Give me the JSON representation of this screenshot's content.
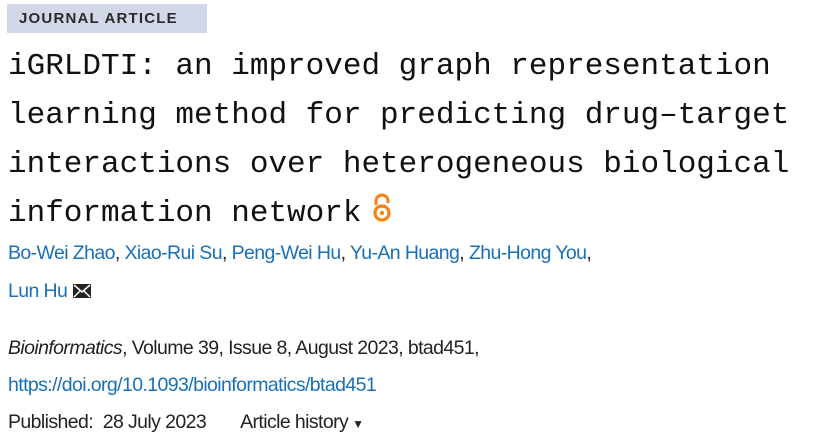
{
  "badge": "JOURNAL ARTICLE",
  "title": "iGRLDTI: an improved graph representation learning method for predicting drug–target interactions over heterogeneous biological information network",
  "authors": [
    "Bo-Wei Zhao",
    "Xiao-Rui Su",
    "Peng-Wei Hu",
    "Yu-An Huang",
    "Zhu-Hong You",
    "Lun Hu"
  ],
  "sep": ", ",
  "citation": {
    "journal": "Bioinformatics",
    "details": ", Volume 39, Issue 8, August 2023, btad451,"
  },
  "doi": "https://doi.org/10.1093/bioinformatics/btad451",
  "published": {
    "label": "Published:",
    "date": "28 July 2023"
  },
  "history": "Article history",
  "colors": {
    "link": "#1a6fb8",
    "badge": "#d3d8e8",
    "open_access": "#f68212"
  }
}
